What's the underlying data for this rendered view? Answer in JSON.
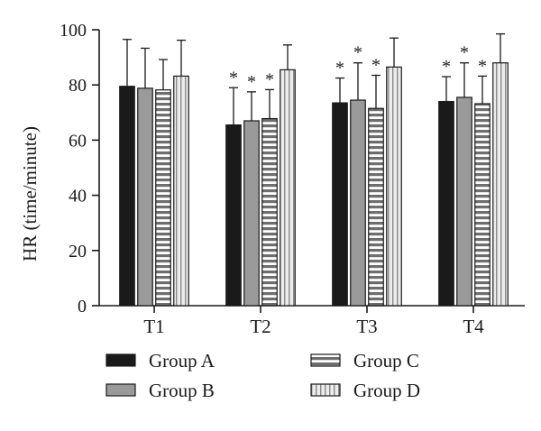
{
  "chart_data": {
    "type": "bar",
    "title": "",
    "xlabel": "",
    "ylabel": "HR (time/minute)",
    "ylim": [
      0,
      100
    ],
    "yticks": [
      0,
      20,
      40,
      60,
      80,
      100
    ],
    "categories": [
      "T1",
      "T2",
      "T3",
      "T4"
    ],
    "grid": false,
    "legend_position": "bottom",
    "error_bars": "upper",
    "significance_marker": "*",
    "series": [
      {
        "name": "Group A",
        "pattern": "solid",
        "color": "#1a1a1a",
        "values": [
          79.5,
          65.5,
          73.5,
          74.0
        ],
        "error": [
          17.0,
          13.5,
          9.0,
          9.0
        ],
        "significant": [
          false,
          true,
          true,
          true
        ]
      },
      {
        "name": "Group B",
        "pattern": "solid",
        "color": "#9a9a9a",
        "values": [
          78.8,
          67.0,
          74.5,
          75.5
        ],
        "error": [
          14.5,
          10.5,
          13.5,
          12.5
        ],
        "significant": [
          false,
          true,
          true,
          true
        ]
      },
      {
        "name": "Group C",
        "pattern": "horizontal-stripes",
        "color": "#6e6e6e",
        "values": [
          78.2,
          67.8,
          71.5,
          73.2
        ],
        "error": [
          11.0,
          10.5,
          12.0,
          10.0
        ],
        "significant": [
          false,
          true,
          true,
          true
        ]
      },
      {
        "name": "Group D",
        "pattern": "vertical-stripes",
        "color": "#d6d6d6",
        "values": [
          83.2,
          85.5,
          86.5,
          88.0
        ],
        "error": [
          13.0,
          9.0,
          10.5,
          10.5
        ],
        "significant": [
          false,
          false,
          false,
          false
        ]
      }
    ]
  }
}
